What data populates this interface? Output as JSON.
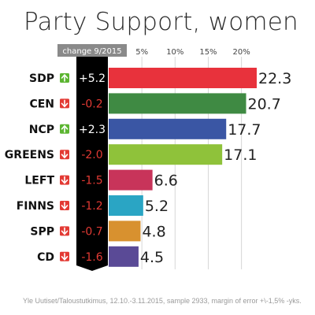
{
  "chart_data": {
    "type": "bar",
    "orientation": "horizontal",
    "title": "Party Support, women",
    "categories": [
      "SDP",
      "CEN",
      "NCP",
      "GREENS",
      "LEFT",
      "FINNS",
      "SPP",
      "CD"
    ],
    "values": [
      22.3,
      20.7,
      17.7,
      17.1,
      6.6,
      5.2,
      4.8,
      4.5
    ],
    "value_labels": [
      "22.3",
      "20.7",
      "17.7",
      "17.1",
      "6.6",
      "5.2",
      "4.8",
      "4.5"
    ],
    "bar_colors": [
      "#e8323c",
      "#3f8a43",
      "#3a56a4",
      "#8fc23a",
      "#c8345a",
      "#2aa5c4",
      "#d8912f",
      "#5a4a96"
    ],
    "x_ticks": [
      5,
      10,
      15,
      20
    ],
    "x_tick_labels": [
      "5%",
      "10%",
      "15%",
      "20%"
    ],
    "xlim": [
      0,
      22.3
    ],
    "grid": true,
    "change_column": {
      "header": "change 9/2015",
      "labels": [
        "+5.2",
        "-0.2",
        "+2.3",
        "-2.0",
        "-1.5",
        "-1.2",
        "-0.7",
        "-1.6"
      ],
      "directions": [
        "up",
        "down",
        "up",
        "down",
        "down",
        "down",
        "down",
        "down"
      ],
      "up_color": "#5cb531",
      "down_color": "#e33a34",
      "positive_text_color": "#ffffff",
      "negative_text_color": "#e33a34"
    }
  },
  "footer": {
    "source": "Yle Uutiset/Taloustutkimus, 12.10.-3.11.2015, sample 2933, margin of error +\\-1,5% -yks."
  }
}
